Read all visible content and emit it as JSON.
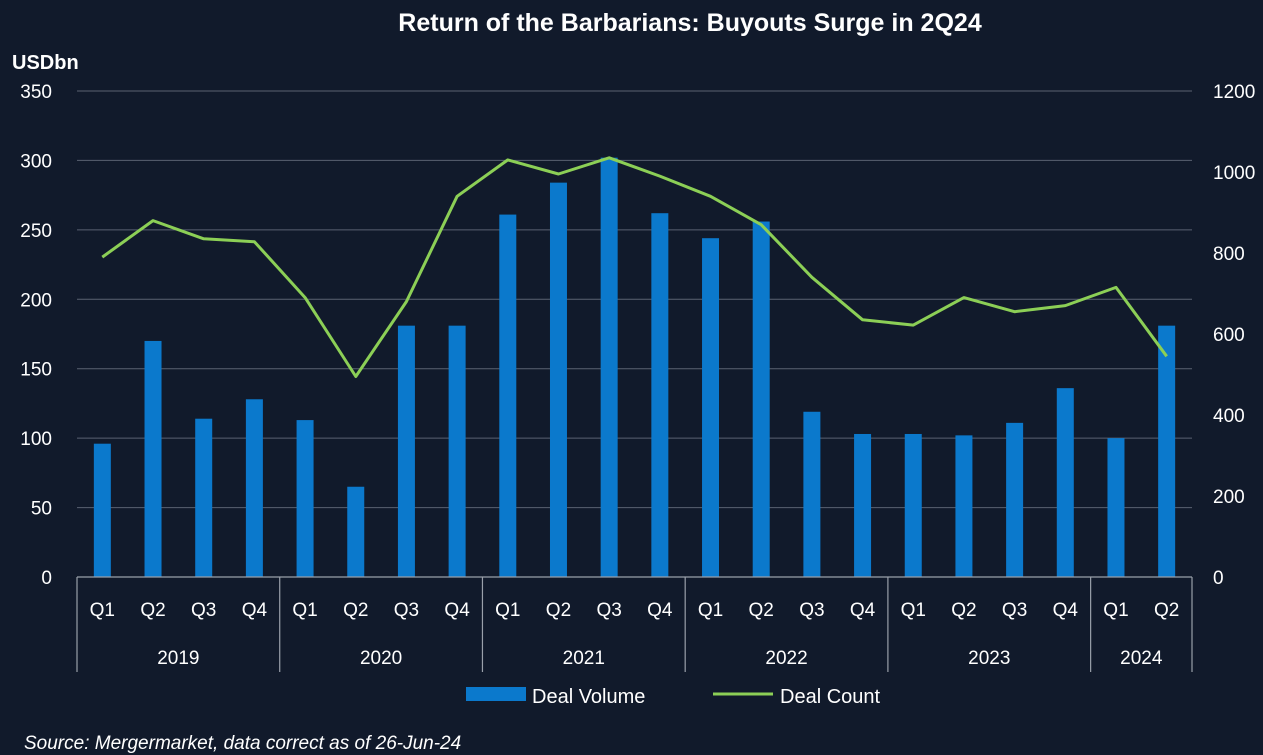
{
  "chart_data": {
    "type": "bar",
    "title": "Return of the Barbarians: Buyouts Surge in 2Q24",
    "ylabel": "USDbn",
    "ylim": [
      0,
      350
    ],
    "y_ticks": [
      "0",
      "50",
      "100",
      "150",
      "200",
      "250",
      "300",
      "350"
    ],
    "y2lim": [
      0,
      1200
    ],
    "y2_ticks": [
      "0",
      "200",
      "400",
      "600",
      "800",
      "1000",
      "1200"
    ],
    "categories": [
      "Q1",
      "Q2",
      "Q3",
      "Q4",
      "Q1",
      "Q2",
      "Q3",
      "Q4",
      "Q1",
      "Q2",
      "Q3",
      "Q4",
      "Q1",
      "Q2",
      "Q3",
      "Q4",
      "Q1",
      "Q2",
      "Q3",
      "Q4",
      "Q1",
      "Q2"
    ],
    "groups": [
      {
        "label": "2019",
        "count": 4
      },
      {
        "label": "2020",
        "count": 4
      },
      {
        "label": "2021",
        "count": 4
      },
      {
        "label": "2022",
        "count": 4
      },
      {
        "label": "2023",
        "count": 4
      },
      {
        "label": "2024",
        "count": 2
      }
    ],
    "series": [
      {
        "name": "Deal Volume",
        "type": "bar",
        "axis": "left",
        "values": [
          96,
          170,
          114,
          128,
          113,
          65,
          181,
          181,
          261,
          284,
          302,
          262,
          244,
          256,
          119,
          103,
          103,
          102,
          111,
          136,
          100,
          181
        ]
      },
      {
        "name": "Deal Count",
        "type": "line",
        "axis": "right",
        "values": [
          790,
          880,
          835,
          828,
          690,
          495,
          680,
          940,
          1030,
          995,
          1035,
          990,
          940,
          870,
          740,
          635,
          622,
          690,
          655,
          670,
          715,
          545
        ]
      }
    ],
    "colors": {
      "bar": "#0b79cc",
      "line": "#8ccf56"
    },
    "legend": {
      "position": "bottom"
    },
    "source": "Source: Mergermarket, data correct as of 26-Jun-24"
  }
}
